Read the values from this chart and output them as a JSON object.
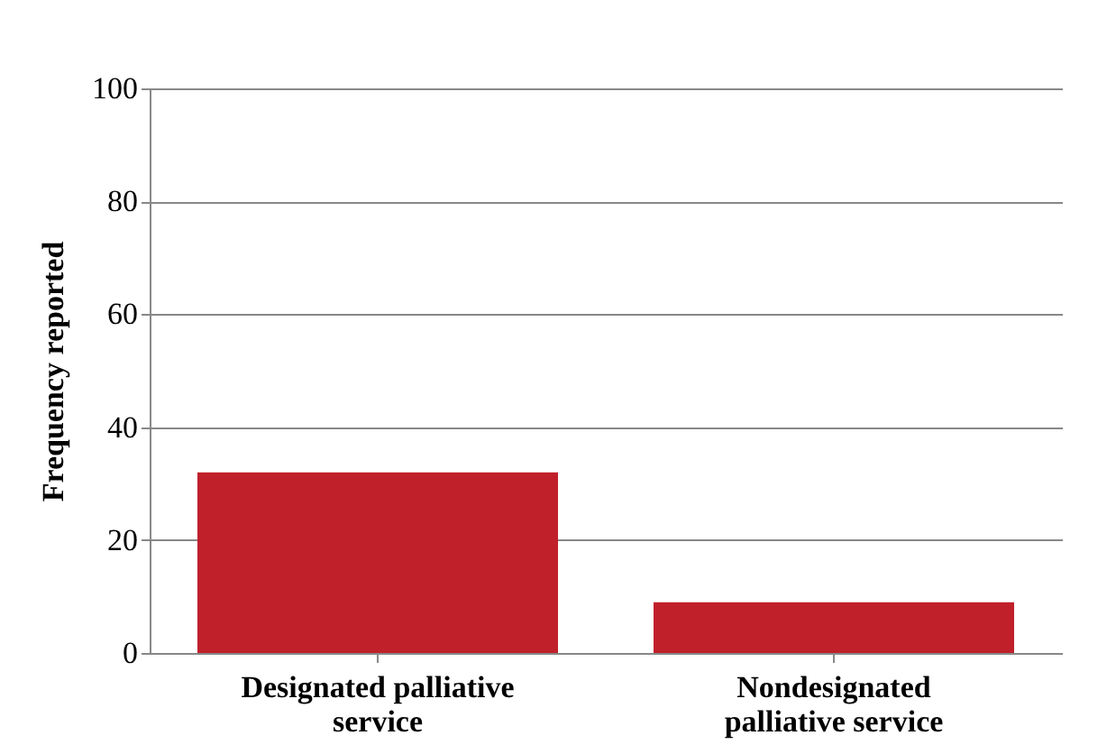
{
  "chart_data": {
    "type": "bar",
    "ylabel": "Frequency reported",
    "categories": [
      "Designated palliative service",
      "Nondesignated palliative service"
    ],
    "values": [
      32,
      9
    ],
    "color": "#c0202a",
    "ylim": [
      0,
      100
    ],
    "yticks": [
      0,
      20,
      40,
      60,
      80,
      100
    ],
    "grid": "y"
  }
}
